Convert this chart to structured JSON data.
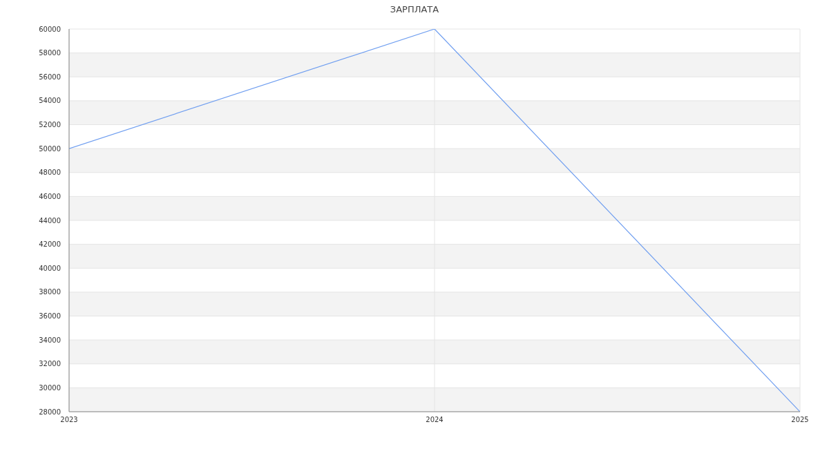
{
  "chart_data": {
    "type": "line",
    "title": "ЗАРПЛАТА",
    "categories": [
      "2023",
      "2024",
      "2025"
    ],
    "series": [
      {
        "color": "#6f9ef0",
        "values": [
          50000,
          60000,
          28000
        ]
      }
    ],
    "ylim": [
      28000,
      60000
    ],
    "yticks": [
      28000,
      30000,
      32000,
      34000,
      36000,
      38000,
      40000,
      42000,
      44000,
      46000,
      48000,
      50000,
      52000,
      54000,
      56000,
      58000,
      60000
    ],
    "grid": true,
    "marker": "none",
    "line_style": "solid"
  }
}
